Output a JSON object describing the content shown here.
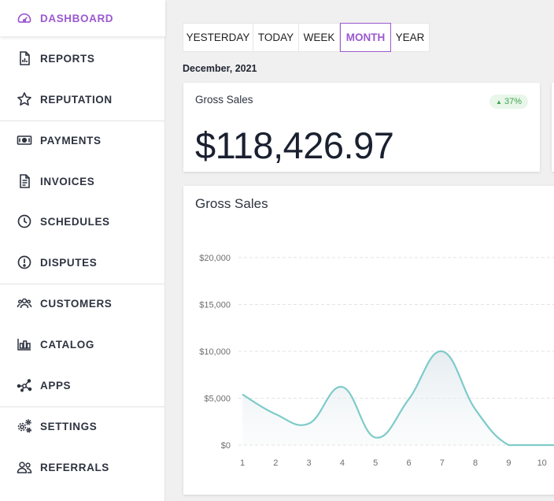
{
  "sidebar": {
    "items": [
      {
        "label": "DASHBOARD",
        "icon": "dashboard-gauge-icon",
        "active": true
      },
      {
        "label": "REPORTS",
        "icon": "report-icon"
      },
      {
        "label": "REPUTATION",
        "icon": "star-icon"
      },
      {
        "label": "PAYMENTS",
        "icon": "cash-icon"
      },
      {
        "label": "INVOICES",
        "icon": "invoice-icon"
      },
      {
        "label": "SCHEDULES",
        "icon": "clock-icon"
      },
      {
        "label": "DISPUTES",
        "icon": "alert-circle-icon"
      },
      {
        "label": "CUSTOMERS",
        "icon": "users-icon"
      },
      {
        "label": "CATALOG",
        "icon": "catalog-icon"
      },
      {
        "label": "APPS",
        "icon": "apps-nodes-icon"
      },
      {
        "label": "SETTINGS",
        "icon": "gears-icon"
      },
      {
        "label": "REFERRALS",
        "icon": "referrals-icon"
      }
    ]
  },
  "tabs": [
    {
      "label": "YESTERDAY"
    },
    {
      "label": "TODAY"
    },
    {
      "label": "WEEK"
    },
    {
      "label": "MONTH",
      "active": true
    },
    {
      "label": "YEAR"
    }
  ],
  "period_label": "December, 2021",
  "summary": {
    "title": "Gross Sales",
    "change": "37%",
    "value": "$118,426.97"
  },
  "chart_panel": {
    "title": "Gross Sales"
  },
  "colors": {
    "accent": "#9b59d0",
    "line": "#7ecbc9",
    "positive": "#3ea54a"
  },
  "chart_data": {
    "type": "line",
    "title": "Gross Sales",
    "x": [
      1,
      2,
      3,
      4,
      5,
      6,
      7,
      8,
      9,
      10
    ],
    "series": [
      {
        "values": [
          5400,
          3300,
          2300,
          6200,
          800,
          4900,
          10000,
          3800,
          0,
          0
        ]
      }
    ],
    "yticks": [
      "$0",
      "$5,000",
      "$10,000",
      "$15,000",
      "$20,000"
    ],
    "ylim": [
      0,
      20000
    ],
    "grid": true,
    "curve": "smooth",
    "fill": "gradient"
  }
}
